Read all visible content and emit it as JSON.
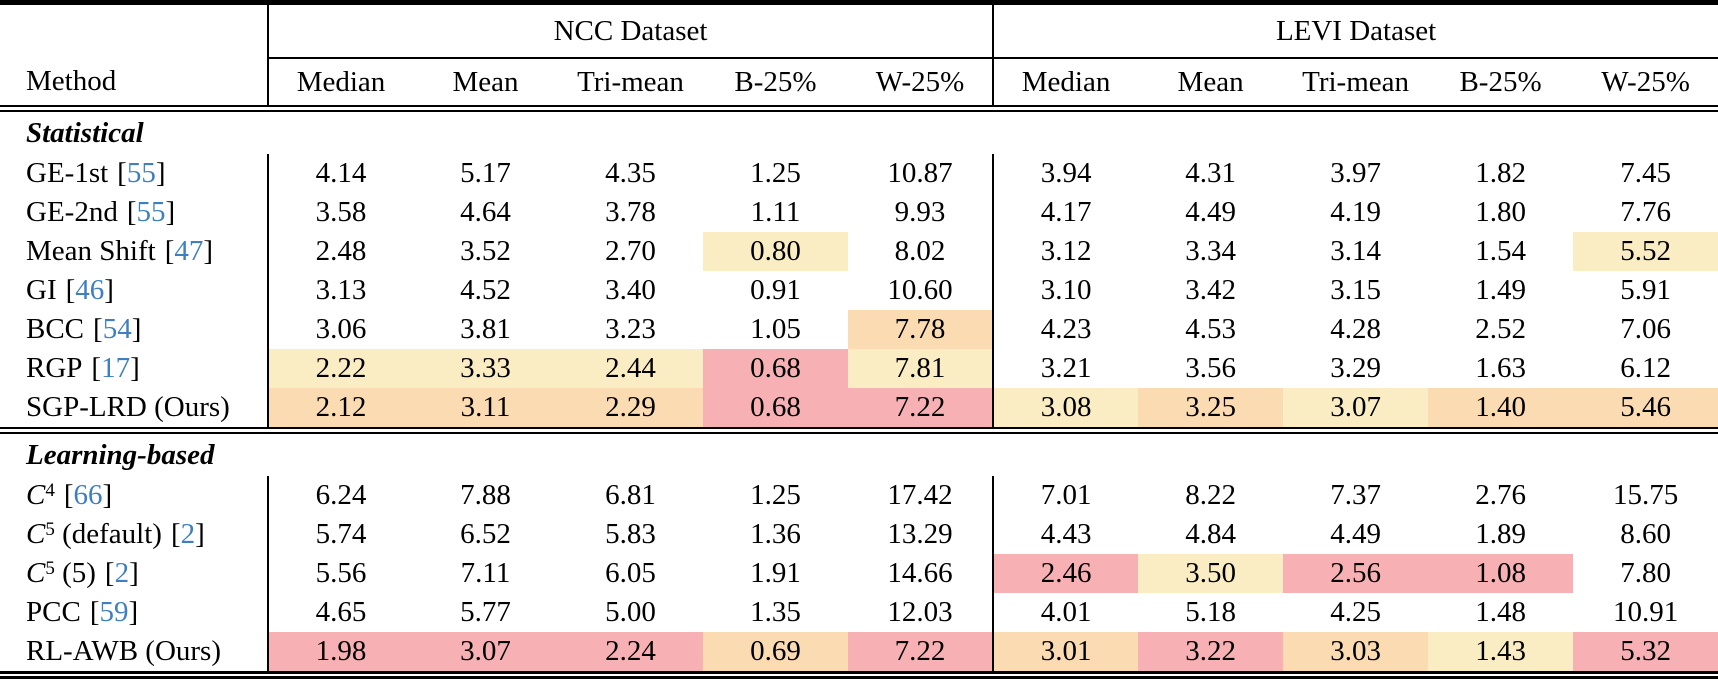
{
  "table": {
    "col_groups": [
      {
        "label": "NCC Dataset"
      },
      {
        "label": "LEVI Dataset"
      }
    ],
    "method_header": "Method",
    "metric_headers": [
      "Median",
      "Mean",
      "Tri-mean",
      "B-25%",
      "W-25%"
    ],
    "citation_brackets": [
      "[",
      "]"
    ],
    "citation_color": "#3E7FC1",
    "highlight_colors": {
      "y": "#FAEDC4",
      "o": "#FBDBB2",
      "p": "#F7B0B3"
    },
    "sections": [
      {
        "label": "Statistical",
        "rows": [
          {
            "method_segments": [
              {
                "t": "GE-1st",
                "s": "n"
              }
            ],
            "citation": "55",
            "cells": [
              {
                "v": "4.14",
                "h": "n"
              },
              {
                "v": "5.17",
                "h": "n"
              },
              {
                "v": "4.35",
                "h": "n"
              },
              {
                "v": "1.25",
                "h": "n"
              },
              {
                "v": "10.87",
                "h": "n"
              },
              {
                "v": "3.94",
                "h": "n"
              },
              {
                "v": "4.31",
                "h": "n"
              },
              {
                "v": "3.97",
                "h": "n"
              },
              {
                "v": "1.82",
                "h": "n"
              },
              {
                "v": "7.45",
                "h": "n"
              }
            ]
          },
          {
            "method_segments": [
              {
                "t": "GE-2nd",
                "s": "n"
              }
            ],
            "citation": "55",
            "cells": [
              {
                "v": "3.58",
                "h": "n"
              },
              {
                "v": "4.64",
                "h": "n"
              },
              {
                "v": "3.78",
                "h": "n"
              },
              {
                "v": "1.11",
                "h": "n"
              },
              {
                "v": "9.93",
                "h": "n"
              },
              {
                "v": "4.17",
                "h": "n"
              },
              {
                "v": "4.49",
                "h": "n"
              },
              {
                "v": "4.19",
                "h": "n"
              },
              {
                "v": "1.80",
                "h": "n"
              },
              {
                "v": "7.76",
                "h": "n"
              }
            ]
          },
          {
            "method_segments": [
              {
                "t": "Mean Shift",
                "s": "n"
              }
            ],
            "citation": "47",
            "cells": [
              {
                "v": "2.48",
                "h": "n"
              },
              {
                "v": "3.52",
                "h": "n"
              },
              {
                "v": "2.70",
                "h": "n"
              },
              {
                "v": "0.80",
                "h": "y"
              },
              {
                "v": "8.02",
                "h": "n"
              },
              {
                "v": "3.12",
                "h": "n"
              },
              {
                "v": "3.34",
                "h": "n"
              },
              {
                "v": "3.14",
                "h": "n"
              },
              {
                "v": "1.54",
                "h": "n"
              },
              {
                "v": "5.52",
                "h": "y"
              }
            ]
          },
          {
            "method_segments": [
              {
                "t": "GI",
                "s": "n"
              }
            ],
            "citation": "46",
            "cells": [
              {
                "v": "3.13",
                "h": "n"
              },
              {
                "v": "4.52",
                "h": "n"
              },
              {
                "v": "3.40",
                "h": "n"
              },
              {
                "v": "0.91",
                "h": "n"
              },
              {
                "v": "10.60",
                "h": "n"
              },
              {
                "v": "3.10",
                "h": "n"
              },
              {
                "v": "3.42",
                "h": "n"
              },
              {
                "v": "3.15",
                "h": "n"
              },
              {
                "v": "1.49",
                "h": "n"
              },
              {
                "v": "5.91",
                "h": "n"
              }
            ]
          },
          {
            "method_segments": [
              {
                "t": "BCC",
                "s": "n"
              }
            ],
            "citation": "54",
            "cells": [
              {
                "v": "3.06",
                "h": "n"
              },
              {
                "v": "3.81",
                "h": "n"
              },
              {
                "v": "3.23",
                "h": "n"
              },
              {
                "v": "1.05",
                "h": "n"
              },
              {
                "v": "7.78",
                "h": "o"
              },
              {
                "v": "4.23",
                "h": "n"
              },
              {
                "v": "4.53",
                "h": "n"
              },
              {
                "v": "4.28",
                "h": "n"
              },
              {
                "v": "2.52",
                "h": "n"
              },
              {
                "v": "7.06",
                "h": "n"
              }
            ]
          },
          {
            "method_segments": [
              {
                "t": "RGP",
                "s": "n"
              }
            ],
            "citation": "17",
            "cells": [
              {
                "v": "2.22",
                "h": "y"
              },
              {
                "v": "3.33",
                "h": "y"
              },
              {
                "v": "2.44",
                "h": "y"
              },
              {
                "v": "0.68",
                "h": "p"
              },
              {
                "v": "7.81",
                "h": "y"
              },
              {
                "v": "3.21",
                "h": "n"
              },
              {
                "v": "3.56",
                "h": "n"
              },
              {
                "v": "3.29",
                "h": "n"
              },
              {
                "v": "1.63",
                "h": "n"
              },
              {
                "v": "6.12",
                "h": "n"
              }
            ]
          },
          {
            "method_segments": [
              {
                "t": "SGP-LRD (Ours)",
                "s": "n"
              }
            ],
            "citation": null,
            "cells": [
              {
                "v": "2.12",
                "h": "o"
              },
              {
                "v": "3.11",
                "h": "o"
              },
              {
                "v": "2.29",
                "h": "o"
              },
              {
                "v": "0.68",
                "h": "p"
              },
              {
                "v": "7.22",
                "h": "p"
              },
              {
                "v": "3.08",
                "h": "y"
              },
              {
                "v": "3.25",
                "h": "o"
              },
              {
                "v": "3.07",
                "h": "y"
              },
              {
                "v": "1.40",
                "h": "o"
              },
              {
                "v": "5.46",
                "h": "o"
              }
            ]
          }
        ]
      },
      {
        "label": "Learning-based",
        "rows": [
          {
            "method_segments": [
              {
                "t": "C",
                "s": "i"
              },
              {
                "t": "4",
                "s": "sup"
              }
            ],
            "citation": "66",
            "cells": [
              {
                "v": "6.24",
                "h": "n"
              },
              {
                "v": "7.88",
                "h": "n"
              },
              {
                "v": "6.81",
                "h": "n"
              },
              {
                "v": "1.25",
                "h": "n"
              },
              {
                "v": "17.42",
                "h": "n"
              },
              {
                "v": "7.01",
                "h": "n"
              },
              {
                "v": "8.22",
                "h": "n"
              },
              {
                "v": "7.37",
                "h": "n"
              },
              {
                "v": "2.76",
                "h": "n"
              },
              {
                "v": "15.75",
                "h": "n"
              }
            ]
          },
          {
            "method_segments": [
              {
                "t": "C",
                "s": "i"
              },
              {
                "t": "5",
                "s": "sup"
              },
              {
                "t": " (default)",
                "s": "n"
              }
            ],
            "citation": "2",
            "cells": [
              {
                "v": "5.74",
                "h": "n"
              },
              {
                "v": "6.52",
                "h": "n"
              },
              {
                "v": "5.83",
                "h": "n"
              },
              {
                "v": "1.36",
                "h": "n"
              },
              {
                "v": "13.29",
                "h": "n"
              },
              {
                "v": "4.43",
                "h": "n"
              },
              {
                "v": "4.84",
                "h": "n"
              },
              {
                "v": "4.49",
                "h": "n"
              },
              {
                "v": "1.89",
                "h": "n"
              },
              {
                "v": "8.60",
                "h": "n"
              }
            ]
          },
          {
            "method_segments": [
              {
                "t": "C",
                "s": "i"
              },
              {
                "t": "5",
                "s": "sup"
              },
              {
                "t": " (5)",
                "s": "n"
              }
            ],
            "citation": "2",
            "cells": [
              {
                "v": "5.56",
                "h": "n"
              },
              {
                "v": "7.11",
                "h": "n"
              },
              {
                "v": "6.05",
                "h": "n"
              },
              {
                "v": "1.91",
                "h": "n"
              },
              {
                "v": "14.66",
                "h": "n"
              },
              {
                "v": "2.46",
                "h": "p"
              },
              {
                "v": "3.50",
                "h": "y"
              },
              {
                "v": "2.56",
                "h": "p"
              },
              {
                "v": "1.08",
                "h": "p"
              },
              {
                "v": "7.80",
                "h": "n"
              }
            ]
          },
          {
            "method_segments": [
              {
                "t": "PCC",
                "s": "n"
              }
            ],
            "citation": "59",
            "cells": [
              {
                "v": "4.65",
                "h": "n"
              },
              {
                "v": "5.77",
                "h": "n"
              },
              {
                "v": "5.00",
                "h": "n"
              },
              {
                "v": "1.35",
                "h": "n"
              },
              {
                "v": "12.03",
                "h": "n"
              },
              {
                "v": "4.01",
                "h": "n"
              },
              {
                "v": "5.18",
                "h": "n"
              },
              {
                "v": "4.25",
                "h": "n"
              },
              {
                "v": "1.48",
                "h": "n"
              },
              {
                "v": "10.91",
                "h": "n"
              }
            ]
          },
          {
            "method_segments": [
              {
                "t": "RL-AWB (Ours)",
                "s": "n"
              }
            ],
            "citation": null,
            "cells": [
              {
                "v": "1.98",
                "h": "p"
              },
              {
                "v": "3.07",
                "h": "p"
              },
              {
                "v": "2.24",
                "h": "p"
              },
              {
                "v": "0.69",
                "h": "o"
              },
              {
                "v": "7.22",
                "h": "p"
              },
              {
                "v": "3.01",
                "h": "o"
              },
              {
                "v": "3.22",
                "h": "p"
              },
              {
                "v": "3.03",
                "h": "o"
              },
              {
                "v": "1.43",
                "h": "y"
              },
              {
                "v": "5.32",
                "h": "p"
              }
            ]
          }
        ]
      }
    ]
  }
}
